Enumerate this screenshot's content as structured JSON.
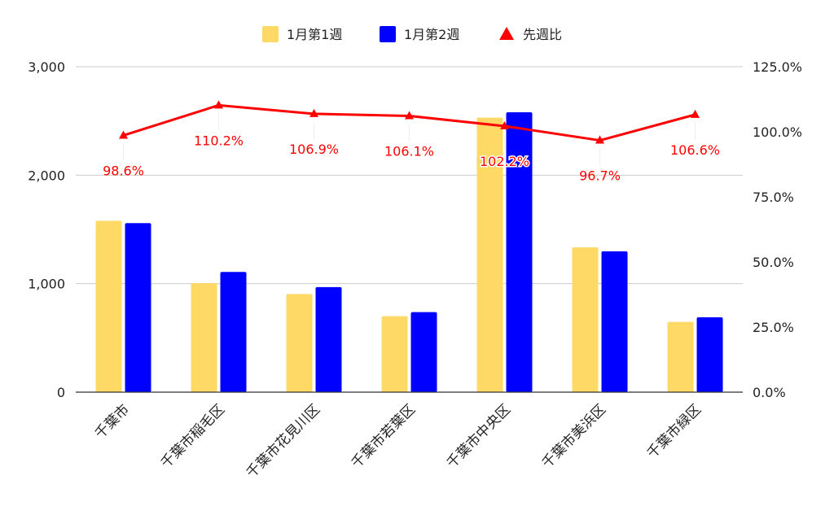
{
  "chart_data": {
    "type": "bar",
    "categories": [
      "千葉市",
      "千葉市稲毛区",
      "千葉市花見川区",
      "千葉市若葉区",
      "千葉市中央区",
      "千葉市美浜区",
      "千葉市緑区"
    ],
    "series": [
      {
        "name": "1月第1週",
        "kind": "bar",
        "axis": "left",
        "color": "#ffd966",
        "values": [
          1580,
          1005,
          905,
          700,
          2530,
          1335,
          648
        ]
      },
      {
        "name": "1月第2週",
        "kind": "bar",
        "axis": "left",
        "color": "#0000ff",
        "values": [
          1558,
          1108,
          968,
          738,
          2580,
          1298,
          690
        ]
      },
      {
        "name": "先週比",
        "kind": "line",
        "axis": "right",
        "color": "#ff0000",
        "marker": "triangle",
        "values": [
          98.6,
          110.2,
          106.9,
          106.1,
          102.2,
          96.7,
          106.6
        ],
        "labels": [
          "98.6%",
          "110.2%",
          "106.9%",
          "106.1%",
          "102.2%",
          "96.7%",
          "106.6%"
        ]
      }
    ],
    "left_axis": {
      "min": 0,
      "max": 3000,
      "ticks": [
        0,
        1000,
        2000,
        3000
      ],
      "tick_labels": [
        "0",
        "1,000",
        "2,000",
        "3,000"
      ]
    },
    "right_axis": {
      "min": 0,
      "max": 125,
      "ticks": [
        0,
        25,
        50,
        75,
        100,
        125
      ],
      "tick_labels": [
        "0.0%",
        "25.0%",
        "50.0%",
        "75.0%",
        "100.0%",
        "125.0%"
      ]
    },
    "grid": true,
    "legend_position": "top-center"
  }
}
